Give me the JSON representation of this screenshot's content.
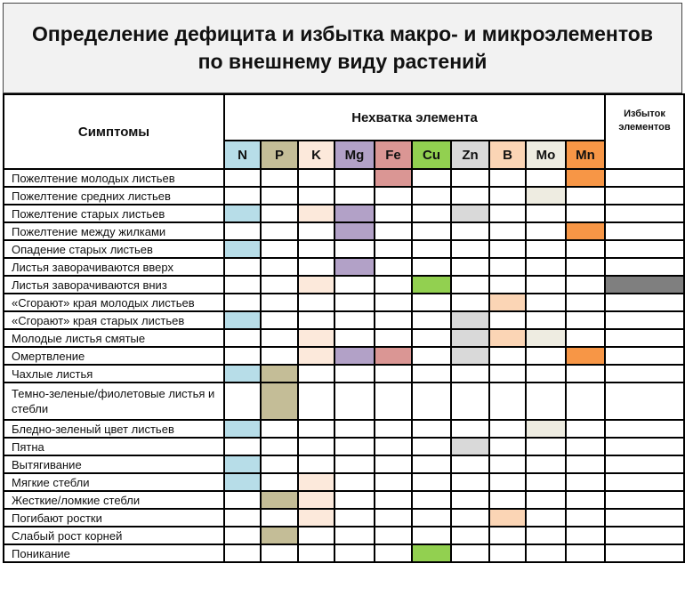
{
  "title": [
    "Определение дефицита и избытка макро- и микроэлементов",
    "по внешнему виду растений"
  ],
  "headers": {
    "symptoms": "Симптомы",
    "deficiency": "Нехватка элемента",
    "excess": "Избыток элементов"
  },
  "elements": [
    {
      "label": "N",
      "color": "#b7dde8"
    },
    {
      "label": "P",
      "color": "#c4bd97"
    },
    {
      "label": "K",
      "color": "#fce9db"
    },
    {
      "label": "Mg",
      "color": "#b2a1c7"
    },
    {
      "label": "Fe",
      "color": "#da9694"
    },
    {
      "label": "Cu",
      "color": "#92d050"
    },
    {
      "label": "Zn",
      "color": "#d9d9d9"
    },
    {
      "label": "B",
      "color": "#fbd5b5"
    },
    {
      "label": "Mo",
      "color": "#eeece1"
    },
    {
      "label": "Mn",
      "color": "#f79646"
    }
  ],
  "excess_color": "#7f7f7f",
  "rows": [
    {
      "symptom": "Пожелтение молодых листьев",
      "marks": [
        "Fe",
        "Mn"
      ]
    },
    {
      "symptom": "Пожелтение средних листьев",
      "marks": [
        "Mo"
      ]
    },
    {
      "symptom": "Пожелтение старых листьев",
      "marks": [
        "N",
        "K",
        "Mg",
        "Zn"
      ]
    },
    {
      "symptom": "Пожелтение между жилками",
      "marks": [
        "Mg",
        "Mn"
      ]
    },
    {
      "symptom": "Опадение старых листьев",
      "marks": [
        "N"
      ]
    },
    {
      "symptom": "Листья заворачиваются вверх",
      "marks": [
        "Mg"
      ]
    },
    {
      "symptom": "Листья заворачиваются вниз",
      "marks": [
        "K",
        "Cu"
      ],
      "excess": true
    },
    {
      "symptom": "«Сгорают» края молодых листьев",
      "marks": [
        "B"
      ]
    },
    {
      "symptom": "«Сгорают» края старых листьев",
      "marks": [
        "N",
        "Zn"
      ]
    },
    {
      "symptom": "Молодые листья смятые",
      "marks": [
        "K",
        "Zn",
        "B",
        "Mo"
      ]
    },
    {
      "symptom": "Омертвление",
      "marks": [
        "K",
        "Mg",
        "Fe",
        "Zn",
        "Mn"
      ]
    },
    {
      "symptom": "Чахлые листья",
      "marks": [
        "N",
        "P"
      ]
    },
    {
      "symptom": "Темно-зеленые/фиолетовые листья и стебли",
      "marks": [
        "P"
      ],
      "tall": true
    },
    {
      "symptom": "Бледно-зеленый цвет листьев",
      "marks": [
        "N",
        "Mo"
      ]
    },
    {
      "symptom": "Пятна",
      "marks": [
        "Zn"
      ]
    },
    {
      "symptom": "Вытягивание",
      "marks": [
        "N"
      ]
    },
    {
      "symptom": "Мягкие стебли",
      "marks": [
        "N",
        "K"
      ]
    },
    {
      "symptom": "Жесткие/ломкие стебли",
      "marks": [
        "P",
        "K"
      ]
    },
    {
      "symptom": "Погибают ростки",
      "marks": [
        "K",
        "B"
      ]
    },
    {
      "symptom": "Слабый рост корней",
      "marks": [
        "P"
      ]
    },
    {
      "symptom": "Поникание",
      "marks": [
        "Cu"
      ]
    }
  ]
}
